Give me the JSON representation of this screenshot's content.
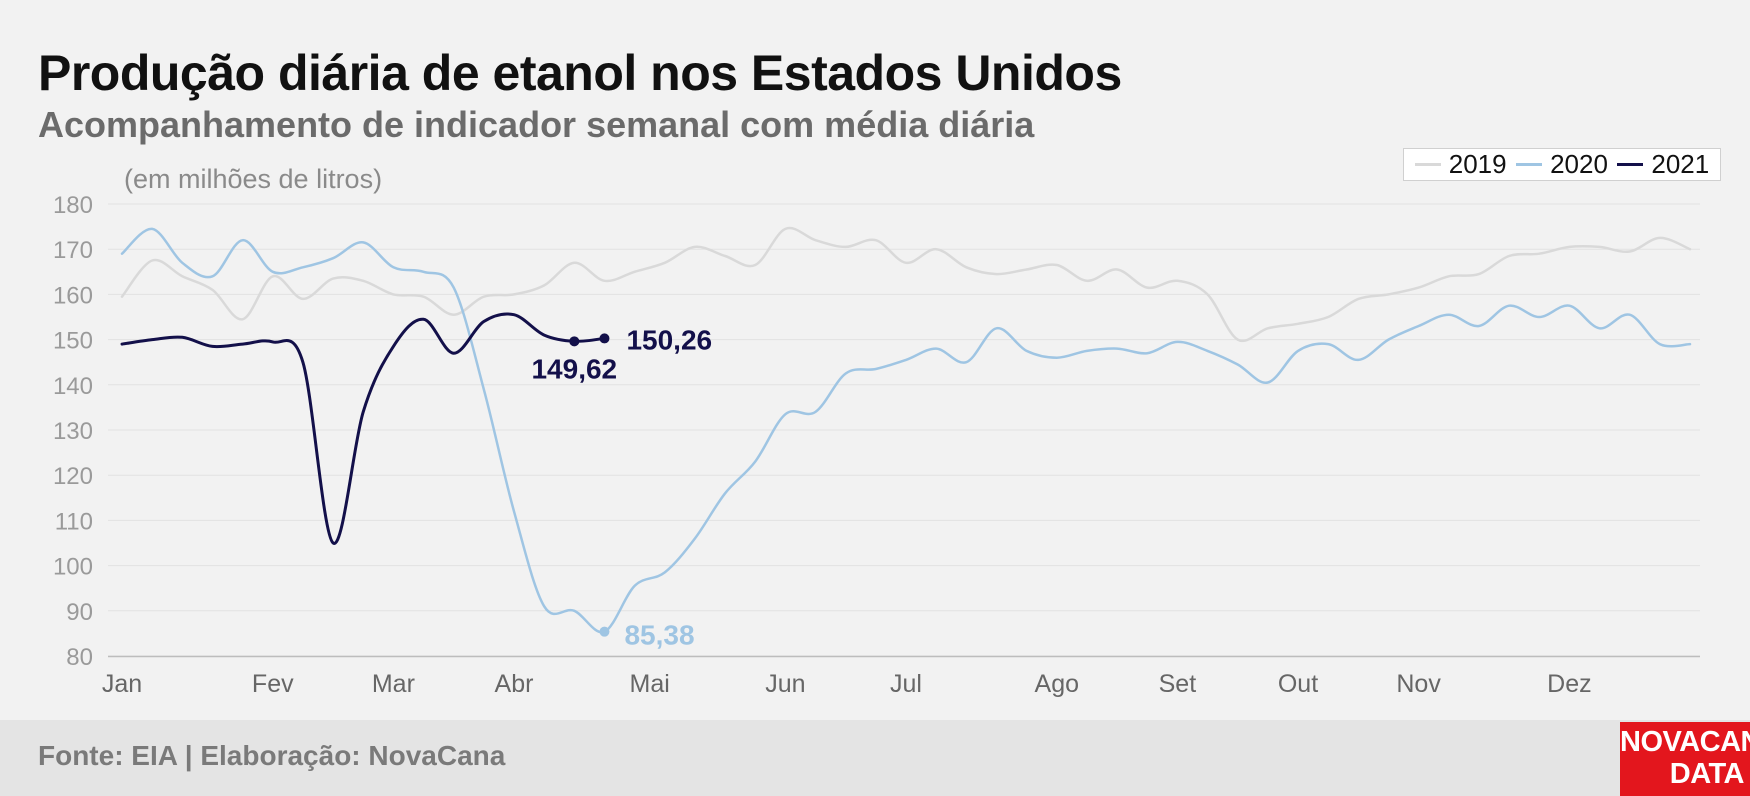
{
  "title": "Produção diária de etanol nos Estados Unidos",
  "subtitle": "Acompanhamento de indicador semanal com média diária",
  "unit_label": "(em milhões de litros)",
  "source": "Fonte: EIA | Elaboração: NovaCana",
  "logo": {
    "line1": "NOVACANA",
    "line2": "DATA"
  },
  "colors": {
    "s2019": "#d9d9d9",
    "s2020": "#9fc5e3",
    "s2021": "#13104a"
  },
  "legend": [
    {
      "label": "2019",
      "color": "#d9d9d9"
    },
    {
      "label": "2020",
      "color": "#9fc5e3"
    },
    {
      "label": "2021",
      "color": "#13104a"
    }
  ],
  "chart_data": {
    "type": "line",
    "title": "Produção diária de etanol nos Estados Unidos",
    "subtitle": "Acompanhamento de indicador semanal com média diária",
    "ylabel": "(em milhões de litros)",
    "ylim": [
      80,
      180
    ],
    "yticks": [
      80,
      90,
      100,
      110,
      120,
      130,
      140,
      150,
      160,
      170,
      180
    ],
    "xlim": [
      0,
      52
    ],
    "month_ticks": [
      {
        "label": "Jan",
        "week": 0
      },
      {
        "label": "Fev",
        "week": 5
      },
      {
        "label": "Mar",
        "week": 9
      },
      {
        "label": "Abr",
        "week": 13
      },
      {
        "label": "Mai",
        "week": 17.5
      },
      {
        "label": "Jun",
        "week": 22
      },
      {
        "label": "Jul",
        "week": 26
      },
      {
        "label": "Ago",
        "week": 31
      },
      {
        "label": "Set",
        "week": 35
      },
      {
        "label": "Out",
        "week": 39
      },
      {
        "label": "Nov",
        "week": 43
      },
      {
        "label": "Dez",
        "week": 48
      }
    ],
    "grid": true,
    "legend_position": "top-right",
    "series": [
      {
        "name": "2019",
        "values": [
          159.5,
          167.5,
          164,
          161,
          154.5,
          164,
          159,
          163.5,
          163,
          160,
          159.5,
          155.5,
          159.5,
          160,
          162,
          167,
          163,
          165,
          167,
          170.5,
          168.5,
          166.5,
          174.5,
          172,
          170.5,
          172,
          167,
          170,
          166,
          164.5,
          165.5,
          166.5,
          163,
          165.5,
          161.5,
          163,
          160,
          150,
          152.5,
          153.5,
          155,
          159,
          160,
          161.5,
          164,
          164.5,
          168.5,
          169,
          170.5,
          170.5,
          169.5,
          172.5,
          170
        ]
      },
      {
        "name": "2020",
        "values": [
          169,
          174.5,
          167,
          164,
          172,
          165,
          166,
          168,
          171.5,
          166,
          165,
          161.5,
          139,
          112,
          91,
          90,
          85.38,
          95.5,
          98.5,
          106,
          116,
          123,
          133.5,
          134,
          142.5,
          143.5,
          145.5,
          148,
          145,
          152.5,
          147.5,
          146,
          147.5,
          148,
          147,
          149.5,
          147.5,
          144.5,
          140.5,
          147.5,
          149,
          145.5,
          150,
          153,
          155.5,
          153,
          157.5,
          155,
          157.5,
          152.5,
          155.5,
          149,
          149
        ]
      },
      {
        "name": "2021",
        "values": [
          149,
          150,
          150.5,
          148.5,
          149,
          149.5,
          145,
          105,
          134,
          148.5,
          154.5,
          147,
          154,
          155.5,
          151,
          149.62,
          150.26
        ]
      }
    ],
    "annotations": [
      {
        "series": "2021",
        "index": 16,
        "text": "150,26"
      },
      {
        "series": "2021",
        "index": 15,
        "text": "149,62"
      },
      {
        "series": "2020",
        "index": 16,
        "text": "85,38"
      }
    ]
  }
}
